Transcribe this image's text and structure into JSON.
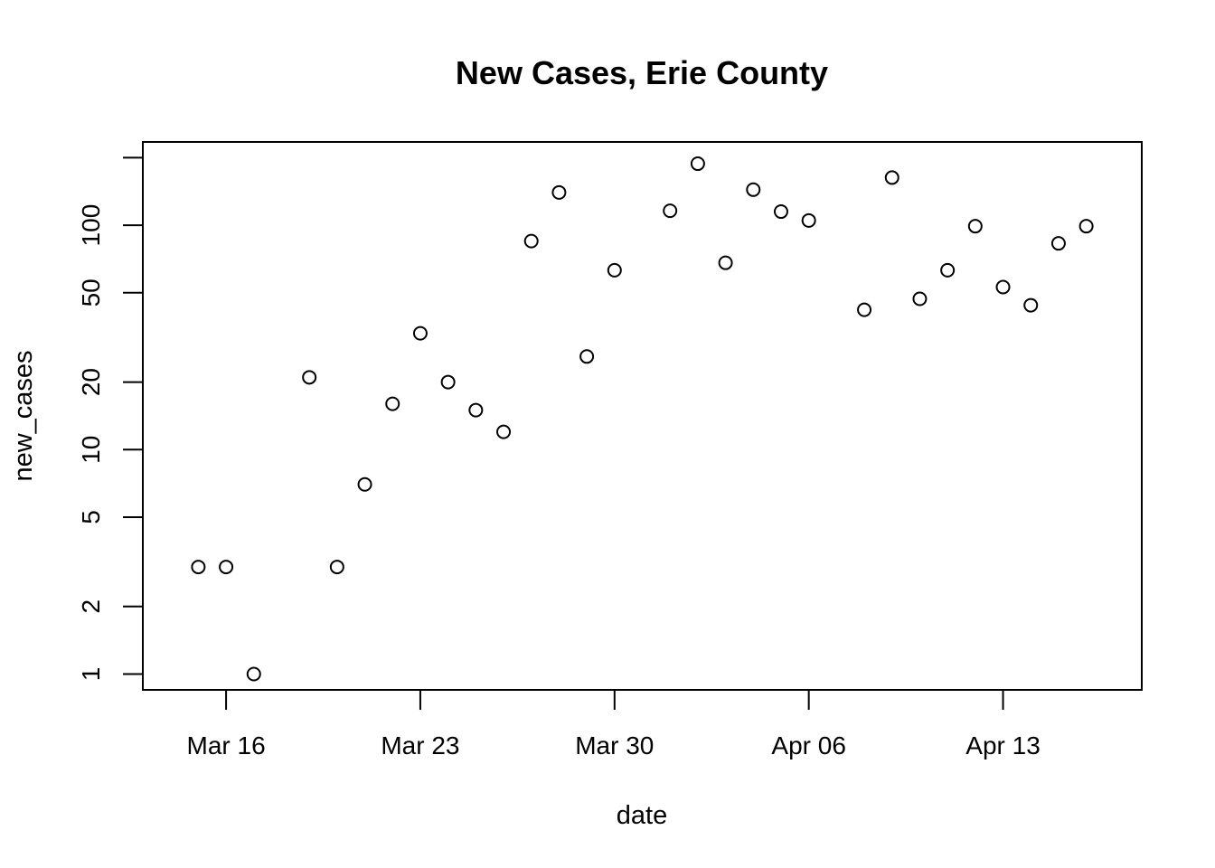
{
  "chart_data": {
    "type": "scatter",
    "title": "New Cases, Erie County",
    "xlabel": "date",
    "ylabel": "new_cases",
    "y_scale": "log",
    "grid": false,
    "legend": "none",
    "x_ticks": [
      {
        "date": "2020-03-16",
        "label": "Mar 16"
      },
      {
        "date": "2020-03-23",
        "label": "Mar 23"
      },
      {
        "date": "2020-03-30",
        "label": "Mar 30"
      },
      {
        "date": "2020-04-06",
        "label": "Apr 06"
      },
      {
        "date": "2020-04-13",
        "label": "Apr 13"
      }
    ],
    "y_ticks": [
      {
        "value": 1,
        "label": "1"
      },
      {
        "value": 2,
        "label": "2"
      },
      {
        "value": 5,
        "label": "5"
      },
      {
        "value": 10,
        "label": "10"
      },
      {
        "value": 20,
        "label": "20"
      },
      {
        "value": 50,
        "label": "50"
      },
      {
        "value": 100,
        "label": "100"
      },
      {
        "value": 200,
        "label": ""
      }
    ],
    "xlim": [
      "2020-03-13",
      "2020-04-18"
    ],
    "ylim": [
      0.85,
      235
    ],
    "points": [
      {
        "date": "2020-03-15",
        "value": 3
      },
      {
        "date": "2020-03-16",
        "value": 3
      },
      {
        "date": "2020-03-17",
        "value": 1
      },
      {
        "date": "2020-03-19",
        "value": 21
      },
      {
        "date": "2020-03-20",
        "value": 3
      },
      {
        "date": "2020-03-21",
        "value": 7
      },
      {
        "date": "2020-03-22",
        "value": 16
      },
      {
        "date": "2020-03-23",
        "value": 33
      },
      {
        "date": "2020-03-24",
        "value": 20
      },
      {
        "date": "2020-03-25",
        "value": 15
      },
      {
        "date": "2020-03-26",
        "value": 12
      },
      {
        "date": "2020-03-27",
        "value": 85
      },
      {
        "date": "2020-03-28",
        "value": 140
      },
      {
        "date": "2020-03-29",
        "value": 26
      },
      {
        "date": "2020-03-30",
        "value": 63
      },
      {
        "date": "2020-04-01",
        "value": 116
      },
      {
        "date": "2020-04-02",
        "value": 188
      },
      {
        "date": "2020-04-03",
        "value": 68
      },
      {
        "date": "2020-04-04",
        "value": 144
      },
      {
        "date": "2020-04-05",
        "value": 115
      },
      {
        "date": "2020-04-06",
        "value": 105
      },
      {
        "date": "2020-04-08",
        "value": 42
      },
      {
        "date": "2020-04-09",
        "value": 163
      },
      {
        "date": "2020-04-10",
        "value": 47
      },
      {
        "date": "2020-04-11",
        "value": 63
      },
      {
        "date": "2020-04-12",
        "value": 99
      },
      {
        "date": "2020-04-13",
        "value": 53
      },
      {
        "date": "2020-04-14",
        "value": 44
      },
      {
        "date": "2020-04-15",
        "value": 83
      },
      {
        "date": "2020-04-16",
        "value": 99
      }
    ]
  }
}
